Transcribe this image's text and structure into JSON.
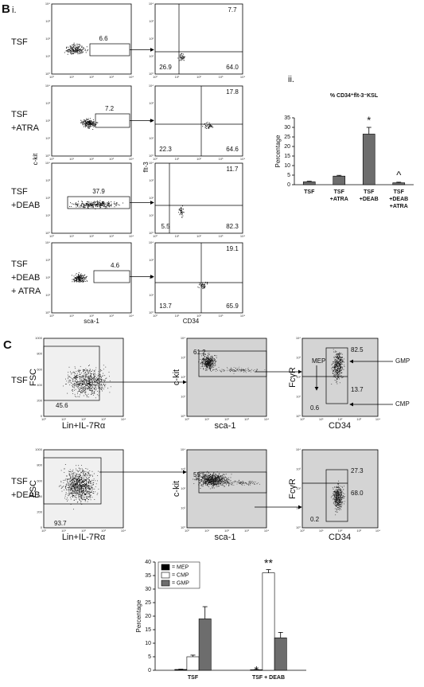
{
  "figure": {
    "panel_b": {
      "label": "B",
      "sublabel": "i.",
      "sublabel_ii": "ii.",
      "rows": [
        {
          "name": [
            "TSF"
          ],
          "gate": "6.6",
          "quadrants": [
            "7.7",
            "26.9",
            "64.0"
          ]
        },
        {
          "name": [
            "TSF",
            "+ATRA"
          ],
          "gate": "7.2",
          "quadrants": [
            "17.8",
            "22.3",
            "64.6"
          ]
        },
        {
          "name": [
            "TSF",
            "+DEAB"
          ],
          "gate": "37.9",
          "quadrants": [
            "11.7",
            "5.5",
            "82.3"
          ]
        },
        {
          "name": [
            "TSF",
            "+DEAB",
            "+ ATRA"
          ],
          "gate": "4.6",
          "quadrants": [
            "19.1",
            "13.7",
            "65.9"
          ]
        }
      ],
      "axes": {
        "ckit": "c-kit",
        "sca1": "sca-1",
        "flt3": "flt-3",
        "cd34": "CD34"
      }
    },
    "panel_c": {
      "label": "C",
      "rows": [
        {
          "name": [
            "TSF"
          ],
          "lin_gate": "45.6",
          "kit_gate": "61.2",
          "gates": [
            "82.5",
            "13.7",
            "0.6"
          ]
        },
        {
          "name": [
            "TSF",
            "+DEAB"
          ],
          "lin_gate": "93.7",
          "kit_gate": "55.5",
          "gates": [
            "27.3",
            "68.0",
            "0.2"
          ]
        }
      ],
      "axes": {
        "fsc": "FSC",
        "lin": "Lin+IL-7Rα",
        "ckit": "c-kit",
        "sca1": "sca-1",
        "fcgr": "FcγR",
        "cd34": "CD34"
      },
      "populations": [
        "MEP",
        "GMP",
        "CMP"
      ]
    },
    "log_ticks": [
      "10⁰",
      "10¹",
      "10²",
      "10³",
      "10⁴"
    ],
    "fsc_ticks": [
      "0",
      "200",
      "400",
      "600",
      "800",
      "1000"
    ]
  },
  "chart_data": [
    {
      "type": "bar",
      "title": "% CD34⁺flt-3⁻KSL",
      "y_label": "Percentage",
      "categories": [
        "TSF",
        "TSF +ATRA",
        "TSF +DEAB",
        "TSF +DEAB +ATRA"
      ],
      "values": [
        1.5,
        4.5,
        26.5,
        1.0
      ],
      "errors": [
        0.3,
        0.4,
        3.5,
        0.3
      ],
      "color": "#6d6d6d",
      "ylim": [
        0,
        35
      ],
      "yticks": [
        0,
        5,
        10,
        15,
        20,
        25,
        30,
        35
      ],
      "annotations": [
        {
          "text": "*",
          "category": 2
        },
        {
          "text": "^",
          "category": 3
        }
      ]
    },
    {
      "type": "grouped_bar",
      "y_label": "Percentage",
      "categories": [
        "TSF",
        "TSF + DEAB"
      ],
      "series": [
        {
          "name": "= MEP",
          "color": "#000000",
          "values": [
            0.3,
            0.2
          ],
          "errors": [
            0.1,
            0.1
          ]
        },
        {
          "name": "= CMP",
          "color": "#ffffff",
          "values": [
            5,
            36
          ],
          "errors": [
            0.6,
            1.2
          ]
        },
        {
          "name": "= GMP",
          "color": "#6d6d6d",
          "values": [
            19,
            12
          ],
          "errors": [
            4.5,
            2
          ]
        }
      ],
      "ylim": [
        0,
        40
      ],
      "yticks": [
        0,
        5,
        10,
        15,
        20,
        25,
        30,
        35,
        40
      ],
      "annotations": [
        {
          "text": "**",
          "series": 1,
          "category": 1
        },
        {
          "text": "*",
          "series": 0,
          "category": 1
        }
      ]
    }
  ]
}
